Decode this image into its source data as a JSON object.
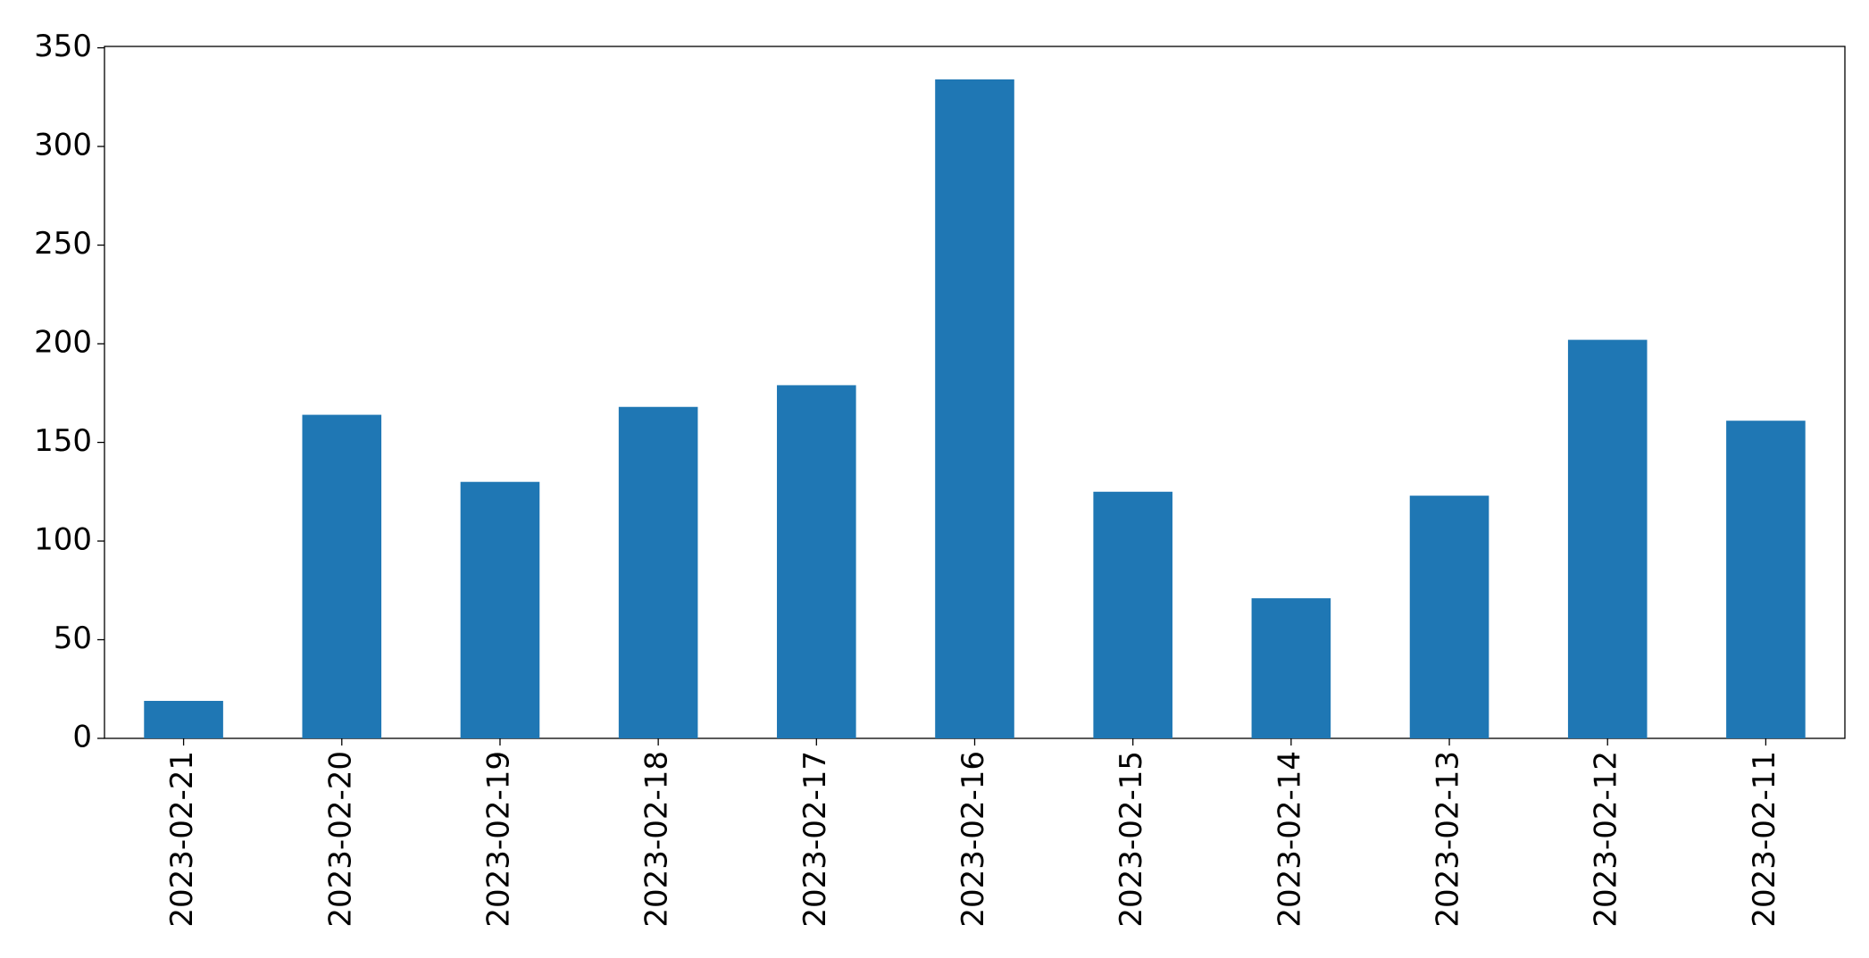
{
  "chart_data": {
    "type": "bar",
    "categories": [
      "2023-02-21",
      "2023-02-20",
      "2023-02-19",
      "2023-02-18",
      "2023-02-17",
      "2023-02-16",
      "2023-02-15",
      "2023-02-14",
      "2023-02-13",
      "2023-02-12",
      "2023-02-11"
    ],
    "values": [
      19,
      164,
      130,
      168,
      179,
      334,
      125,
      71,
      123,
      202,
      161
    ],
    "color": "#1f77b4",
    "ylim": [
      0,
      350.7
    ],
    "yticks": [
      0,
      50,
      100,
      150,
      200,
      250,
      300,
      350
    ],
    "grid": false
  }
}
